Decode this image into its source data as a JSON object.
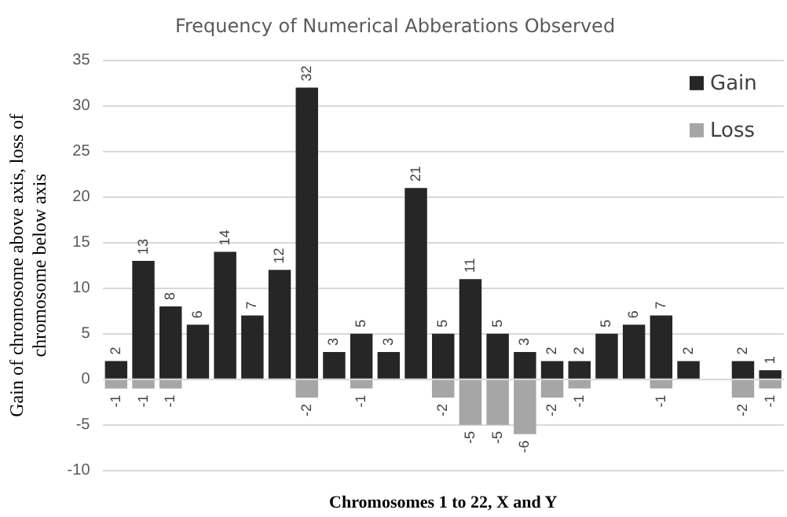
{
  "chart_data": {
    "type": "bar",
    "title": "Frequency of Numerical Abberations Observed",
    "xlabel": "Chromosomes 1 to 22, X and Y",
    "ylabel": "Gain of chromosome above axis, loss of chromosome below axis",
    "categories": [
      null,
      null,
      null,
      null,
      null,
      null,
      null,
      null,
      null,
      null,
      null,
      null,
      null,
      null,
      null,
      null,
      null,
      null,
      null,
      null,
      null,
      null,
      null,
      null,
      null
    ],
    "series": [
      {
        "name": "Gain",
        "color": "#262626",
        "values": [
          2,
          13,
          8,
          6,
          14,
          7,
          12,
          32,
          3,
          5,
          3,
          21,
          5,
          11,
          5,
          3,
          2,
          2,
          5,
          6,
          7,
          2,
          null,
          2,
          1
        ]
      },
      {
        "name": "Loss",
        "color": "#a6a6a6",
        "values": [
          -1,
          -1,
          -1,
          null,
          null,
          null,
          null,
          -2,
          null,
          -1,
          null,
          null,
          -2,
          -5,
          -5,
          -6,
          -2,
          -1,
          null,
          null,
          -1,
          null,
          null,
          -2,
          -1
        ]
      }
    ],
    "stacked": true,
    "ylim": [
      -10,
      35
    ],
    "yticks": [
      -10,
      -5,
      0,
      5,
      10,
      15,
      20,
      25,
      30,
      35
    ],
    "grid": "y",
    "legend": "top right",
    "data_labels": true
  }
}
